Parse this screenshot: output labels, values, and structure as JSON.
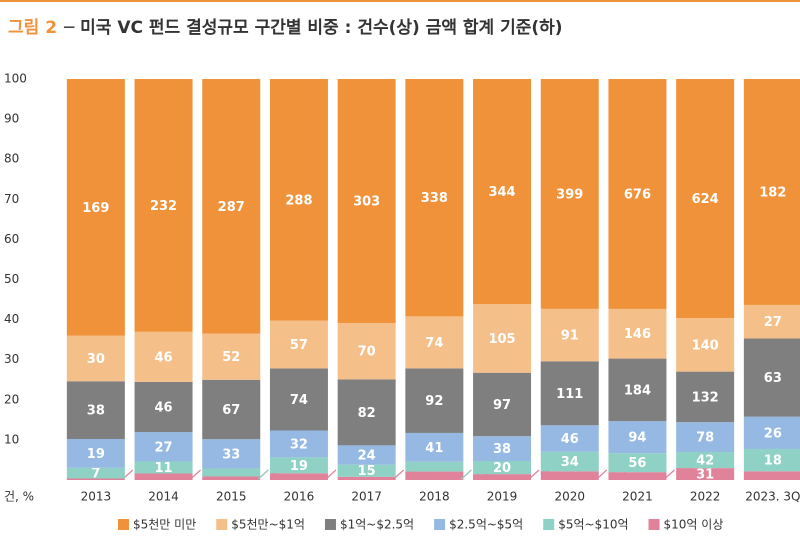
{
  "chart_data": {
    "type": "bar",
    "stacking": "percent",
    "title_prefix": "그림 2",
    "title": "─ 미국 VC 펀드 결성규모 구간별 비중 : 건수(상) 금액 합계 기준(하)",
    "y_label": "건, %",
    "categories": [
      "2013",
      "2014",
      "2015",
      "2016",
      "2017",
      "2018",
      "2019",
      "2020",
      "2021",
      "2022",
      "2023. 3Q"
    ],
    "series": [
      {
        "name": "$5천만 미만",
        "color": "#f0923a",
        "values": [
          169,
          232,
          287,
          288,
          303,
          338,
          344,
          399,
          676,
          624,
          182
        ]
      },
      {
        "name": "$5천만~$1억",
        "color": "#f5bf8a",
        "values": [
          30,
          46,
          52,
          57,
          70,
          74,
          105,
          91,
          146,
          140,
          27
        ]
      },
      {
        "name": "$1억~$2.5억",
        "color": "#7f7f7f",
        "values": [
          38,
          46,
          67,
          74,
          82,
          92,
          97,
          111,
          184,
          132,
          63
        ]
      },
      {
        "name": "$2.5억~$5억",
        "color": "#95b9e3",
        "values": [
          19,
          27,
          33,
          32,
          24,
          41,
          38,
          46,
          94,
          78,
          26
        ]
      },
      {
        "name": "$5억~$10억",
        "color": "#8fd1c4",
        "values": [
          7,
          11,
          9,
          19,
          15,
          14,
          20,
          34,
          56,
          42,
          18
        ]
      },
      {
        "name": "$10억 이상",
        "color": "#e0829a",
        "values": [
          1,
          6,
          4,
          8,
          4,
          12,
          9,
          15,
          23,
          31,
          7
        ]
      }
    ],
    "ylim": [
      0,
      100
    ],
    "yticks": [
      10,
      20,
      30,
      40,
      50,
      60,
      70,
      80,
      90,
      100
    ],
    "grid": false,
    "legend": "bottom"
  }
}
